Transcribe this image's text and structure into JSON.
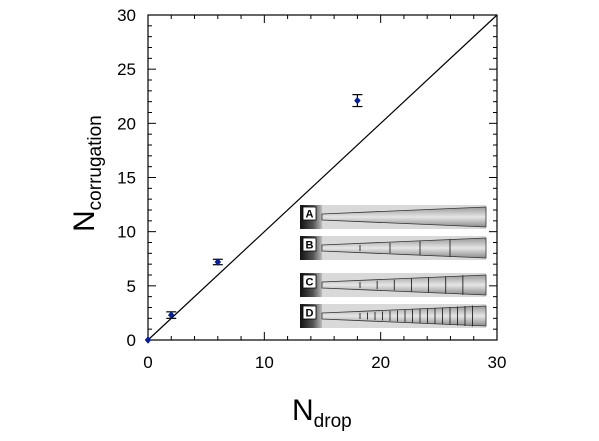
{
  "chart_data": {
    "type": "scatter",
    "xlabel": {
      "main": "N",
      "sub": "drop"
    },
    "ylabel": {
      "main": "N",
      "sub": "corrugation"
    },
    "xlim": [
      0,
      30
    ],
    "ylim": [
      0,
      30
    ],
    "xticks": [
      0,
      10,
      20,
      30
    ],
    "yticks": [
      0,
      5,
      10,
      15,
      20,
      25,
      30
    ],
    "xtick_labels": [
      "0",
      "10",
      "20",
      "30"
    ],
    "ytick_labels": [
      "0",
      "5",
      "10",
      "15",
      "20",
      "25",
      "30"
    ],
    "grid": false,
    "marker_color": "#0a1f8f",
    "series": [
      {
        "points": [
          {
            "x": 0,
            "y": 0,
            "err": 0
          },
          {
            "x": 2,
            "y": 2.3,
            "err": 0.3
          },
          {
            "x": 6,
            "y": 7.2,
            "err": 0.25
          },
          {
            "x": 18,
            "y": 22.1,
            "err": 0.55
          }
        ]
      }
    ],
    "reference_line": {
      "from": [
        0,
        0
      ],
      "to": [
        30,
        30
      ]
    },
    "inset": {
      "panels": [
        {
          "label": "A"
        },
        {
          "label": "B"
        },
        {
          "label": "C"
        },
        {
          "label": "D"
        }
      ]
    }
  }
}
